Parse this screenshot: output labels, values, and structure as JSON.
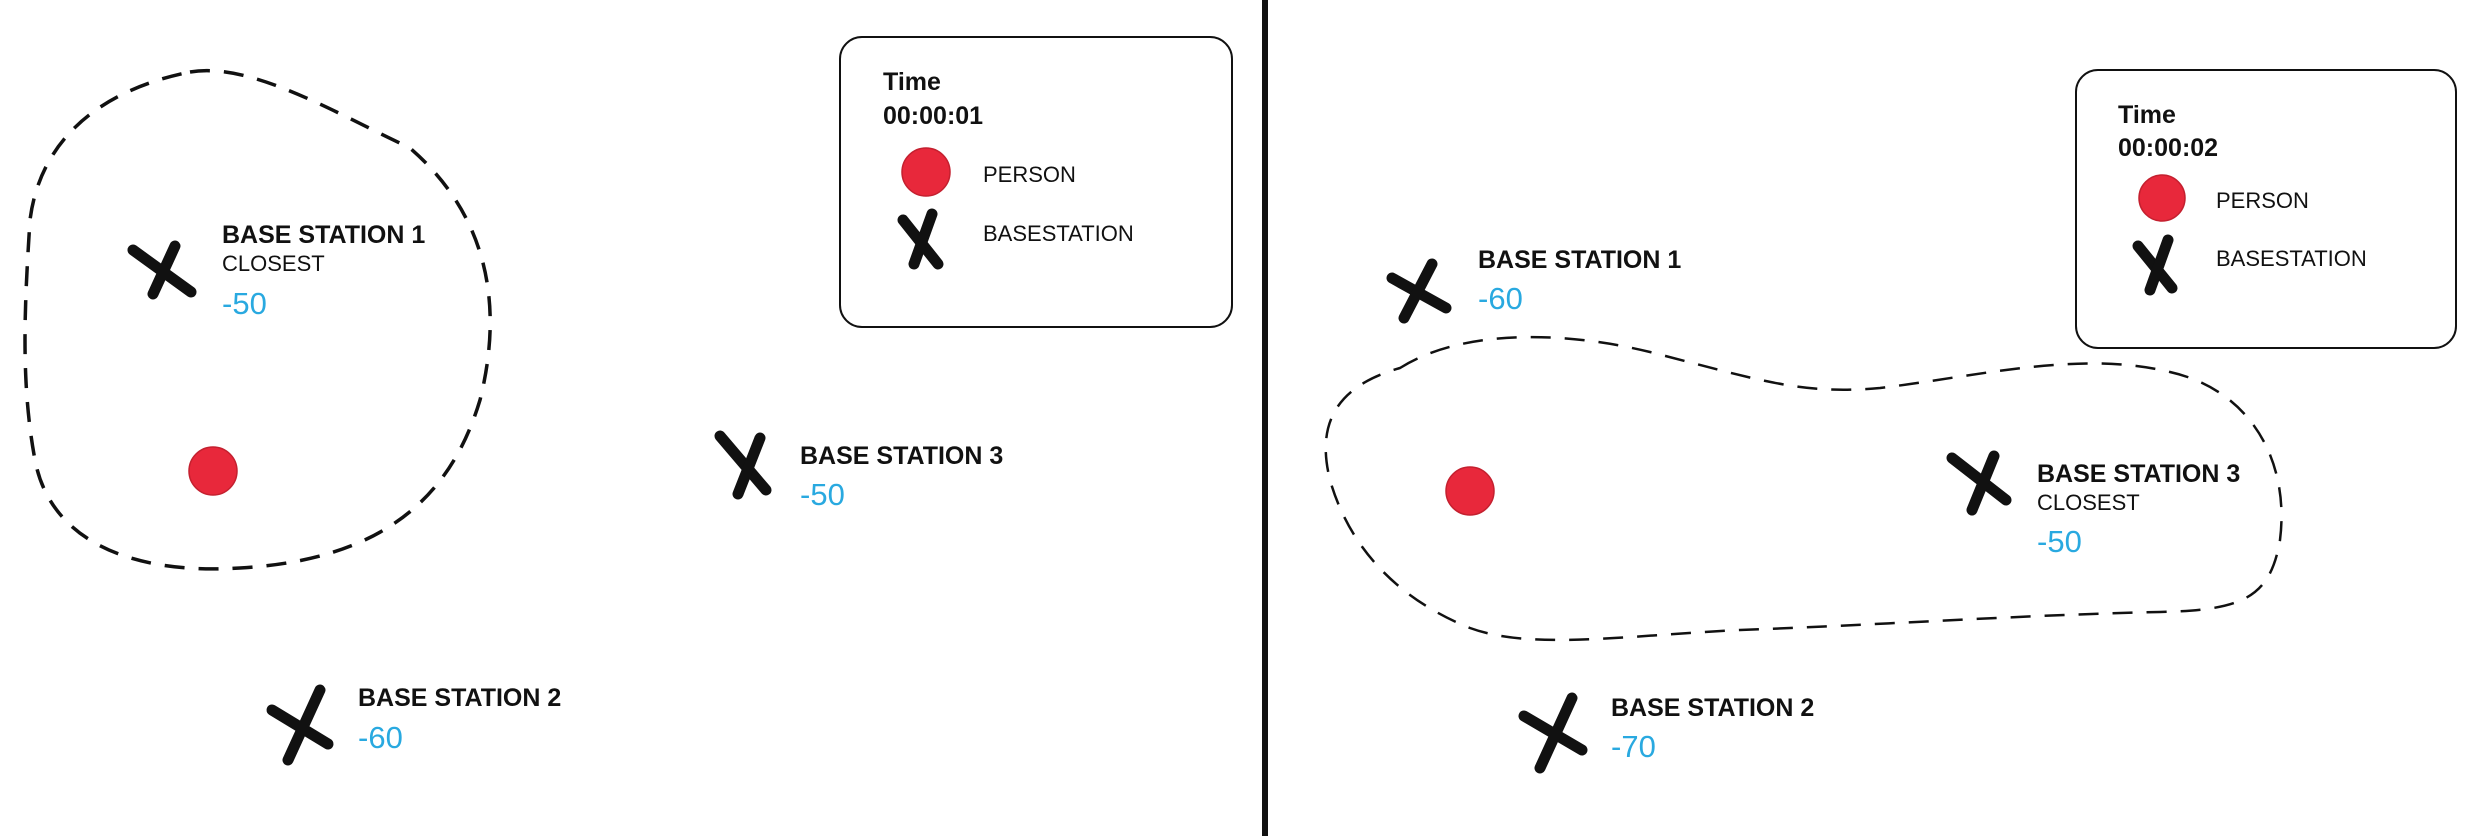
{
  "colors": {
    "person": "#e8283b",
    "rssi": "#29a9e0",
    "ink": "#111111"
  },
  "panels": [
    {
      "legend": {
        "time_label": "Time",
        "time_value": "00:00:01",
        "person_label": "PERSON",
        "basestation_label": "BASESTATION"
      },
      "stations": [
        {
          "name": "BASE STATION 1",
          "note": "CLOSEST",
          "rssi": "-50"
        },
        {
          "name": "BASE STATION 2",
          "note": "",
          "rssi": "-60"
        },
        {
          "name": "BASE STATION 3",
          "note": "",
          "rssi": "-50"
        }
      ]
    },
    {
      "legend": {
        "time_label": "Time",
        "time_value": "00:00:02",
        "person_label": "PERSON",
        "basestation_label": "BASESTATION"
      },
      "stations": [
        {
          "name": "BASE STATION 1",
          "note": "",
          "rssi": "-60"
        },
        {
          "name": "BASE STATION 2",
          "note": "",
          "rssi": "-70"
        },
        {
          "name": "BASE STATION 3",
          "note": "CLOSEST",
          "rssi": "-50"
        }
      ]
    }
  ]
}
